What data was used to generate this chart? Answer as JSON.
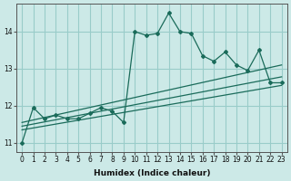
{
  "xlabel": "Humidex (Indice chaleur)",
  "ylabel": "",
  "xlim": [
    -0.5,
    23.5
  ],
  "ylim": [
    10.75,
    14.75
  ],
  "yticks": [
    11,
    12,
    13,
    14
  ],
  "xticks": [
    0,
    1,
    2,
    3,
    4,
    5,
    6,
    7,
    8,
    9,
    10,
    11,
    12,
    13,
    14,
    15,
    16,
    17,
    18,
    19,
    20,
    21,
    22,
    23
  ],
  "bg_color": "#cce9e7",
  "grid_color": "#99ccc9",
  "line_color": "#1a6b5a",
  "data_line": {
    "x": [
      0,
      1,
      2,
      3,
      4,
      5,
      6,
      7,
      8,
      9,
      10,
      11,
      12,
      13,
      14,
      15,
      16,
      17,
      18,
      19,
      20,
      21,
      22,
      23
    ],
    "y": [
      11.0,
      11.95,
      11.65,
      11.75,
      11.65,
      11.65,
      11.8,
      11.95,
      11.85,
      11.55,
      14.0,
      13.9,
      13.95,
      14.5,
      14.0,
      13.95,
      13.35,
      13.2,
      13.45,
      13.1,
      12.95,
      13.5,
      12.62,
      12.62
    ]
  },
  "trend_lines": [
    {
      "x": [
        0,
        23
      ],
      "y": [
        11.55,
        13.1
      ]
    },
    {
      "x": [
        0,
        23
      ],
      "y": [
        11.45,
        12.78
      ]
    },
    {
      "x": [
        0,
        23
      ],
      "y": [
        11.35,
        12.55
      ]
    }
  ]
}
